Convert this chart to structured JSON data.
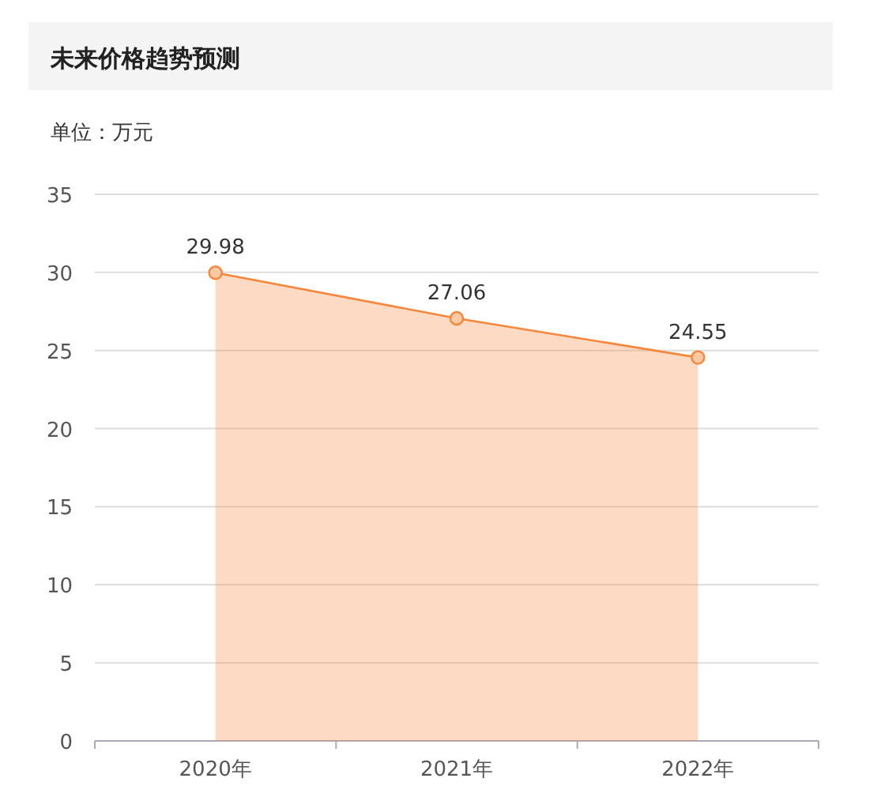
{
  "chart_data": {
    "type": "area",
    "title": "未来价格趋势预测",
    "ylabel": "单位：万元",
    "categories": [
      "2020年",
      "2021年",
      "2022年"
    ],
    "series": [
      {
        "color": "#f5863a",
        "values": [
          29.98,
          27.06,
          24.55
        ]
      }
    ],
    "ylim": [
      0,
      35
    ],
    "yticks": [
      0,
      5,
      10,
      15,
      20,
      25,
      30,
      35
    ],
    "grid": "y",
    "marker": "circle",
    "data_labels": true
  }
}
